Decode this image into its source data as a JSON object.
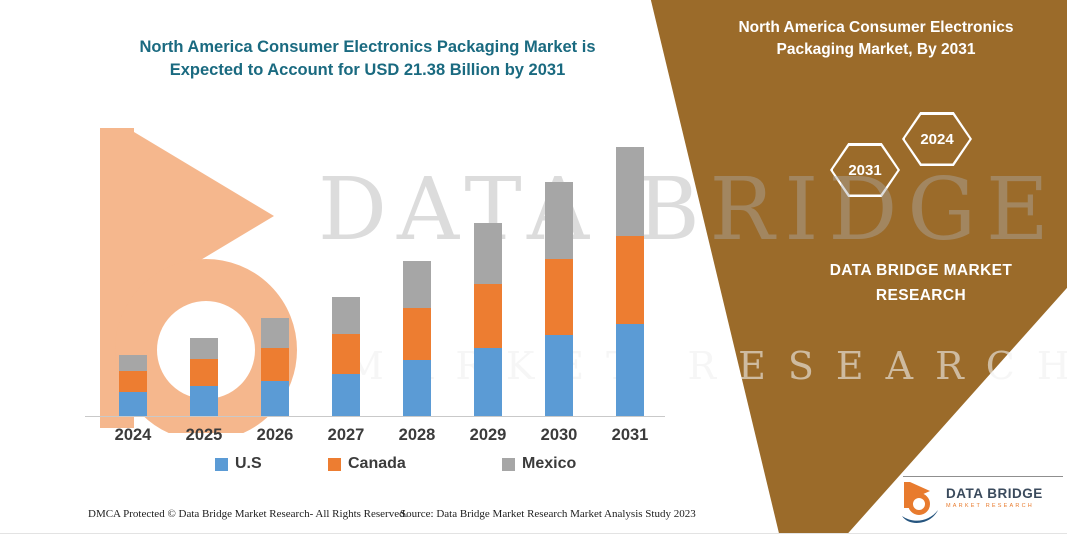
{
  "header": {
    "title_line1": "North America Consumer Electronics Packaging Market is",
    "title_line2": "Expected to Account for USD 21.38 Billion by 2031",
    "title_color": "#1A6A80"
  },
  "band": {
    "color": "#9B6B2A",
    "title_line1": "North America Consumer Electronics",
    "title_line2": "Packaging Market, By 2031",
    "badges": [
      {
        "label": "2031"
      },
      {
        "label": "2024"
      }
    ],
    "brand_line1": "DATA BRIDGE MARKET",
    "brand_line2": "RESEARCH"
  },
  "watermark": {
    "line1": "DATA BRIDGE",
    "line2": "MARKET RESEARCH",
    "logo_icon": "data-bridge-b-icon"
  },
  "chart_data": {
    "type": "bar",
    "stacked": true,
    "title": "North America Consumer Electronics Packaging Market is Expected to Account for USD 21.38 Billion by 2031",
    "unit": "USD Billion",
    "categories": [
      "2024",
      "2025",
      "2026",
      "2027",
      "2028",
      "2029",
      "2030",
      "2031"
    ],
    "series": [
      {
        "name": "U.S",
        "color": "#5B9BD5",
        "values": [
          1.9,
          2.4,
          2.8,
          3.3,
          4.4,
          5.4,
          6.4,
          7.3
        ]
      },
      {
        "name": "Canada",
        "color": "#ED7D31",
        "values": [
          1.7,
          2.1,
          2.6,
          3.2,
          4.1,
          5.1,
          6.0,
          7.0
        ]
      },
      {
        "name": "Mexico",
        "color": "#A6A6A6",
        "values": [
          1.3,
          1.7,
          2.4,
          2.9,
          3.7,
          4.8,
          6.1,
          7.08
        ]
      }
    ],
    "ylim": [
      0,
      22
    ],
    "grid": false,
    "legend_position": "bottom",
    "axis_labels_bold": true
  },
  "footer": {
    "left": "DMCA Protected © Data Bridge Market Research-  All Rights Reserved.",
    "source": "Source: Data Bridge Market Research  Market Analysis Study 2023"
  },
  "logo": {
    "icon": "data-bridge-logo-icon",
    "name": "DATA BRIDGE",
    "sub": "MARKET RESEARCH"
  }
}
